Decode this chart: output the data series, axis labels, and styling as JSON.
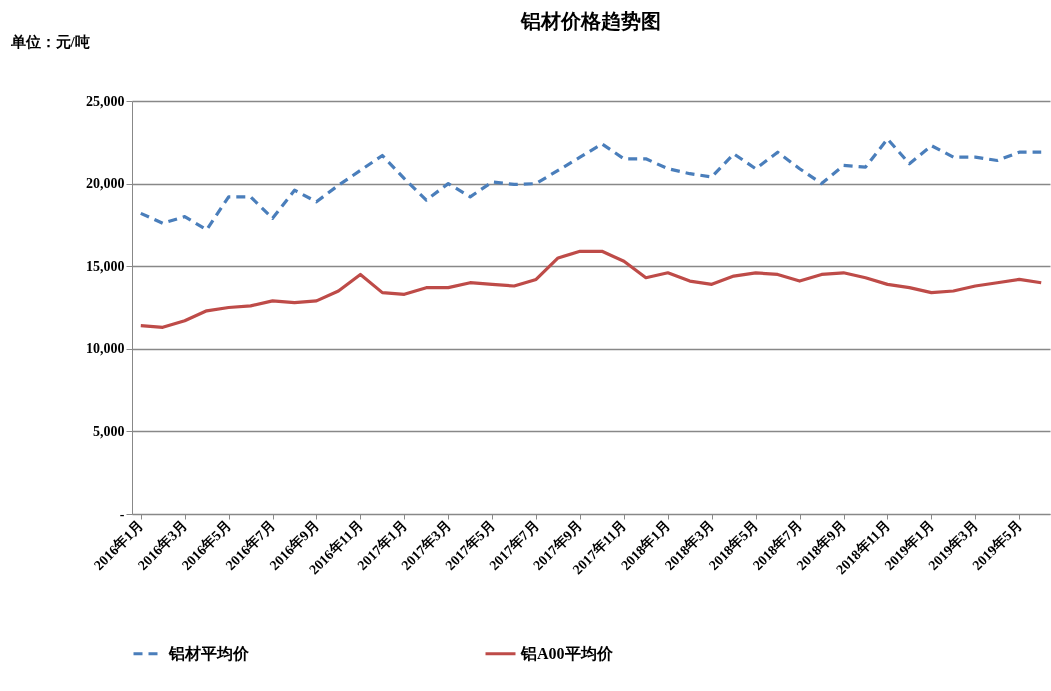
{
  "chart_data": {
    "type": "line",
    "title": "铝材价格趋势图",
    "ylabel": "单位：元/吨",
    "categories": [
      "2016年1月",
      null,
      "2016年3月",
      null,
      "2016年5月",
      null,
      "2016年7月",
      null,
      "2016年9月",
      null,
      "2016年11月",
      null,
      "2017年1月",
      null,
      "2017年3月",
      null,
      "2017年5月",
      null,
      "2017年7月",
      null,
      "2017年9月",
      null,
      "2017年11月",
      null,
      "2018年1月",
      null,
      "2018年3月",
      null,
      "2018年5月",
      null,
      "2018年7月",
      null,
      "2018年9月",
      null,
      "2018年11月",
      null,
      "2019年1月",
      null,
      "2019年3月",
      null,
      "2019年5月",
      null
    ],
    "series": [
      {
        "name": "铝材平均价",
        "color": "#4a7ebb",
        "line_style": "dashed",
        "values": [
          18200,
          17600,
          18000,
          17200,
          19200,
          19200,
          17900,
          19600,
          18900,
          19900,
          20800,
          21700,
          20300,
          19000,
          20000,
          19200,
          20100,
          19950,
          20000,
          20800,
          21600,
          22400,
          21500,
          21500,
          20900,
          20600,
          20400,
          21800,
          20900,
          21900,
          20900,
          20000,
          21100,
          21000,
          22700,
          21200,
          22300,
          21600,
          21600,
          21400,
          21900,
          21900
        ]
      },
      {
        "name": "铝A00平均价",
        "color": "#be4b48",
        "line_style": "solid",
        "values": [
          11400,
          11300,
          11700,
          12300,
          12500,
          12600,
          12900,
          12800,
          12900,
          13500,
          14500,
          13400,
          13300,
          13700,
          13700,
          14000,
          13900,
          13800,
          14200,
          15500,
          15900,
          15900,
          15300,
          14300,
          14600,
          14100,
          13900,
          14400,
          14600,
          14500,
          14100,
          14500,
          14600,
          14300,
          13900,
          13700,
          13400,
          13500,
          13800,
          14000,
          14200,
          14000
        ]
      }
    ],
    "ylim": [
      0,
      25000
    ],
    "yticks": [
      {
        "value": 0,
        "label": "-"
      },
      {
        "value": 5000,
        "label": "5,000"
      },
      {
        "value": 10000,
        "label": "10,000"
      },
      {
        "value": 15000,
        "label": "15,000"
      },
      {
        "value": 20000,
        "label": "20,000"
      },
      {
        "value": 25000,
        "label": "25,000"
      }
    ],
    "grid": "y",
    "legend": "bottom",
    "marker": "none"
  }
}
